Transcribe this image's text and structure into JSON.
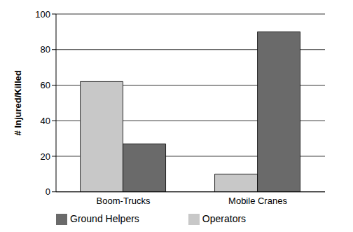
{
  "chart_data": {
    "type": "bar",
    "y_label": "# Injured/Killed",
    "categories": [
      "Boom-Trucks",
      "Mobile Cranes"
    ],
    "series": [
      {
        "name": "Operators",
        "color": "#c8c8c8",
        "values": [
          62,
          10
        ]
      },
      {
        "name": "Ground Helpers",
        "color": "#6a6a6a",
        "values": [
          27,
          90
        ]
      }
    ],
    "ylim": [
      0,
      100
    ],
    "yticks": [
      0,
      20,
      40,
      60,
      80,
      100
    ],
    "grid": true,
    "legend": "bottom"
  }
}
